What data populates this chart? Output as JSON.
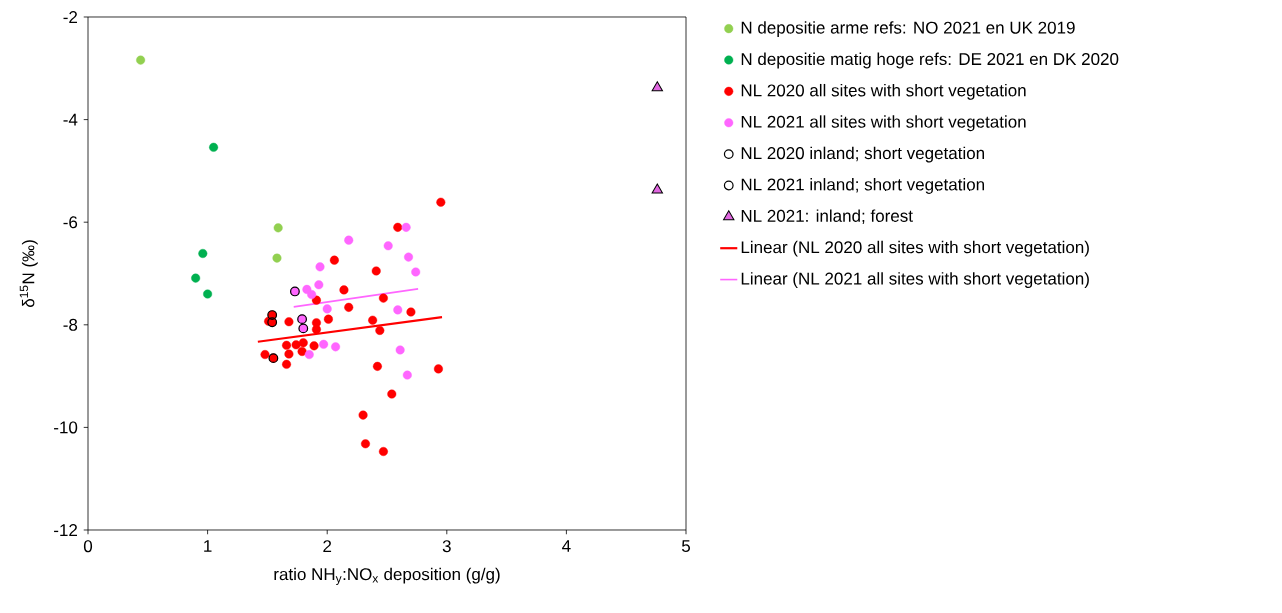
{
  "chart_data": {
    "type": "scatter",
    "xlabel": "ratio NH$_{y}$:NO$_{x}$ deposition (g/g)",
    "ylabel": "δ$^{15}$N (‰)",
    "xlim": [
      0,
      5
    ],
    "ylim": [
      -12,
      -2
    ],
    "xticks": [
      0,
      1,
      2,
      3,
      4,
      5
    ],
    "yticks": [
      -12,
      -10,
      -8,
      -6,
      -4,
      -2
    ],
    "grid": false,
    "legend": "right",
    "marker": "circle",
    "series": [
      {
        "name": "N depositie arme refs: NO 2021 en UK 2019",
        "color": "#92d050",
        "x": [
          0.44,
          1.59,
          1.58
        ],
        "values": [
          -2.84,
          -6.11,
          -6.7
        ]
      },
      {
        "name": "N depositie matig hoge refs: DE 2021 en DK 2020",
        "color": "#00b050",
        "x": [
          1.05,
          0.96,
          0.9,
          1.0
        ],
        "values": [
          -4.54,
          -6.61,
          -7.09,
          -7.4
        ]
      },
      {
        "name": "NL 2020 all sites with short vegetation",
        "color": "#ff0000",
        "x": [
          2.95,
          2.59,
          2.06,
          2.41,
          1.91,
          2.14,
          2.47,
          2.18,
          2.7,
          1.54,
          1.51,
          1.54,
          1.68,
          1.91,
          2.01,
          1.91,
          2.38,
          2.44,
          1.66,
          1.74,
          1.8,
          1.89,
          1.48,
          1.68,
          1.79,
          1.66,
          1.55,
          2.42,
          2.93,
          2.54,
          2.3,
          2.32,
          2.47
        ],
        "values": [
          -5.61,
          -6.1,
          -6.74,
          -6.95,
          -7.52,
          -7.32,
          -7.48,
          -7.66,
          -7.75,
          -7.81,
          -7.93,
          -7.95,
          -7.94,
          -7.96,
          -7.89,
          -8.09,
          -7.91,
          -8.11,
          -8.4,
          -8.39,
          -8.35,
          -8.41,
          -8.58,
          -8.57,
          -8.52,
          -8.77,
          -8.65,
          -8.81,
          -8.86,
          -9.35,
          -9.76,
          -10.32,
          -10.47
        ]
      },
      {
        "name": "NL 2021 all sites with short vegetation",
        "color": "#ff66ff",
        "x": [
          2.66,
          2.18,
          2.51,
          2.68,
          1.94,
          2.74,
          1.93,
          1.83,
          1.87,
          1.73,
          2.0,
          2.59,
          1.79,
          1.8,
          1.97,
          2.07,
          1.85,
          2.61,
          2.67
        ],
        "values": [
          -6.1,
          -6.35,
          -6.46,
          -6.68,
          -6.87,
          -6.97,
          -7.22,
          -7.31,
          -7.41,
          -7.35,
          -7.69,
          -7.71,
          -7.89,
          -8.07,
          -8.38,
          -8.43,
          -8.58,
          -8.49,
          -8.98
        ]
      },
      {
        "name": "NL 2020 inland; short vegetation",
        "color": "#000000",
        "x": [
          1.54,
          1.54,
          1.55
        ],
        "values": [
          -7.81,
          -7.95,
          -8.65
        ]
      },
      {
        "name": "NL 2021 inland; short vegetation",
        "color": "#000000",
        "x": [
          1.73,
          1.79,
          1.8
        ],
        "values": [
          -7.35,
          -7.89,
          -8.07
        ]
      },
      {
        "name": "NL 2021: inland; forest",
        "color": "#e066e0",
        "marker": "triangle",
        "x": [
          4.76,
          4.76
        ],
        "values": [
          -3.38,
          -5.37
        ]
      },
      {
        "name": "Linear (NL 2020 all sites with short vegetation)",
        "type": "line",
        "marker": "none",
        "color": "#ff0000",
        "x": [
          1.42,
          2.96
        ],
        "values": [
          -8.33,
          -7.85
        ]
      },
      {
        "name": "Linear (NL 2021 all sites with short vegetation)",
        "type": "line",
        "marker": "none",
        "color": "#ff66ff",
        "x": [
          1.72,
          2.76
        ],
        "values": [
          -7.65,
          -7.3
        ]
      }
    ]
  }
}
